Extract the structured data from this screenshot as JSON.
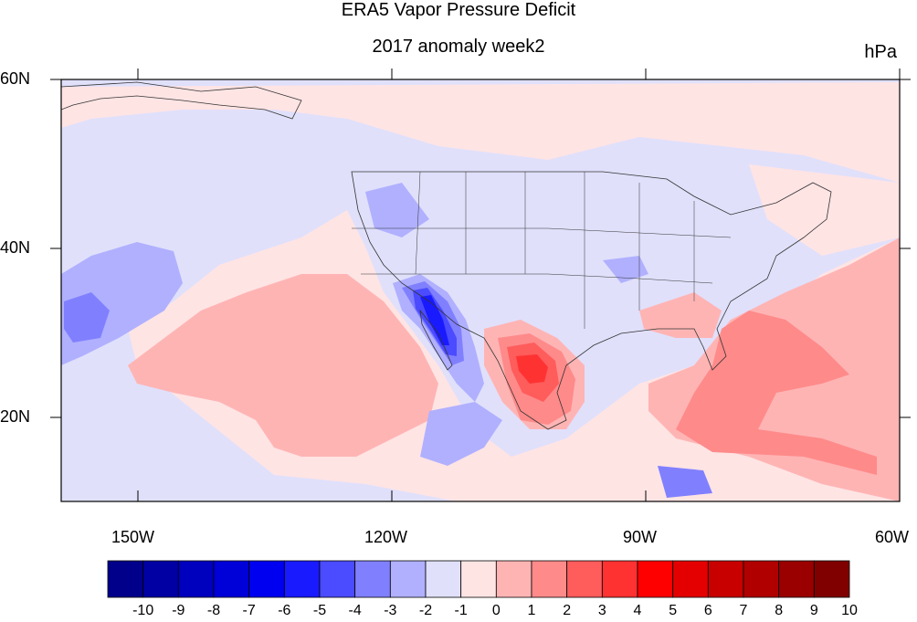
{
  "title": "ERA5 Vapor Pressure Deficit",
  "subtitle": "2017 anomaly week2",
  "units": "hPa",
  "axes": {
    "lon_labels": [
      "150W",
      "120W",
      "90W",
      "60W"
    ],
    "lat_labels": [
      "60N",
      "40N",
      "20N"
    ],
    "lon_range": [
      -159,
      -60
    ],
    "lat_range": [
      10,
      60
    ]
  },
  "colorbar": {
    "labels": [
      "-10",
      "-9",
      "-8",
      "-7",
      "-6",
      "-5",
      "-4",
      "-3",
      "-2",
      "-1",
      "0",
      "1",
      "2",
      "3",
      "4",
      "5",
      "6",
      "7",
      "8",
      "9",
      "10"
    ],
    "colors": [
      "#00008a",
      "#0000a3",
      "#0000bf",
      "#0000d8",
      "#0000f0",
      "#1a1aff",
      "#4b4bff",
      "#8080ff",
      "#b0b0ff",
      "#e0e0fb",
      "#ffe4e4",
      "#ffb4b4",
      "#ff8a8a",
      "#ff5c5c",
      "#ff3232",
      "#ff0000",
      "#e40000",
      "#c80000",
      "#b00000",
      "#9a0000",
      "#800000"
    ]
  }
}
